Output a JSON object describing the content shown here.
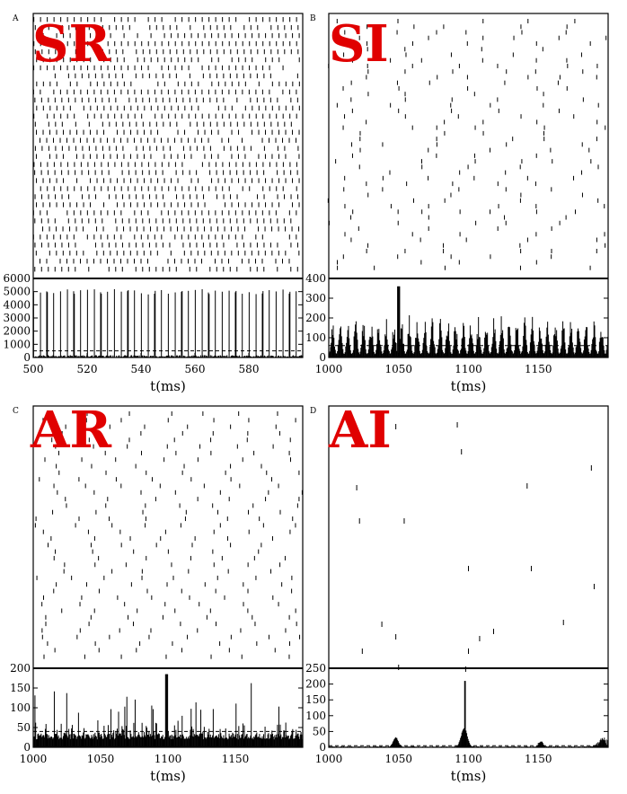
{
  "chart_data": [
    {
      "type": "raster+histogram",
      "panel": "A",
      "label": "SR",
      "xlabel": "t(ms)",
      "xlim": [
        500,
        600
      ],
      "xticks": [
        500,
        520,
        540,
        560,
        580
      ],
      "ylim": [
        0,
        6000
      ],
      "yticks": [
        0,
        1000,
        2000,
        3000,
        4000,
        5000,
        6000
      ],
      "period": 2.5,
      "peak": 5200,
      "baseline": 300,
      "threshold": 500,
      "pattern": "sync-regular"
    },
    {
      "type": "raster+histogram",
      "panel": "B",
      "label": "SI",
      "xlabel": "t(ms)",
      "xlim": [
        1000,
        1200
      ],
      "xticks": [
        1000,
        1050,
        1100,
        1150
      ],
      "ylim": [
        0,
        400
      ],
      "yticks": [
        0,
        100,
        200,
        300,
        400
      ],
      "period": 5.5,
      "peak": 190,
      "baseline": 15,
      "threshold": 60,
      "pattern": "sync-irregular"
    },
    {
      "type": "raster+histogram",
      "panel": "C",
      "label": "AR",
      "xlabel": "t(ms)",
      "xlim": [
        1000,
        1200
      ],
      "xticks": [
        1000,
        1050,
        1100,
        1150
      ],
      "ylim": [
        0,
        200
      ],
      "yticks": [
        0,
        50,
        100,
        150,
        200
      ],
      "period": 0,
      "peak": 95,
      "baseline": 20,
      "threshold": 40,
      "pattern": "async-regular"
    },
    {
      "type": "raster+histogram",
      "panel": "D",
      "label": "AI",
      "xlabel": "t(ms)",
      "xlim": [
        1000,
        1200
      ],
      "xticks": [
        1000,
        1050,
        1100,
        1150
      ],
      "ylim": [
        0,
        250
      ],
      "yticks": [
        0,
        50,
        100,
        150,
        200,
        250
      ],
      "period": 0,
      "peak": 210,
      "baseline": 3,
      "threshold": 5,
      "pattern": "async-irregular"
    }
  ],
  "colors": {
    "label": "#e00000",
    "ink": "#000000"
  }
}
